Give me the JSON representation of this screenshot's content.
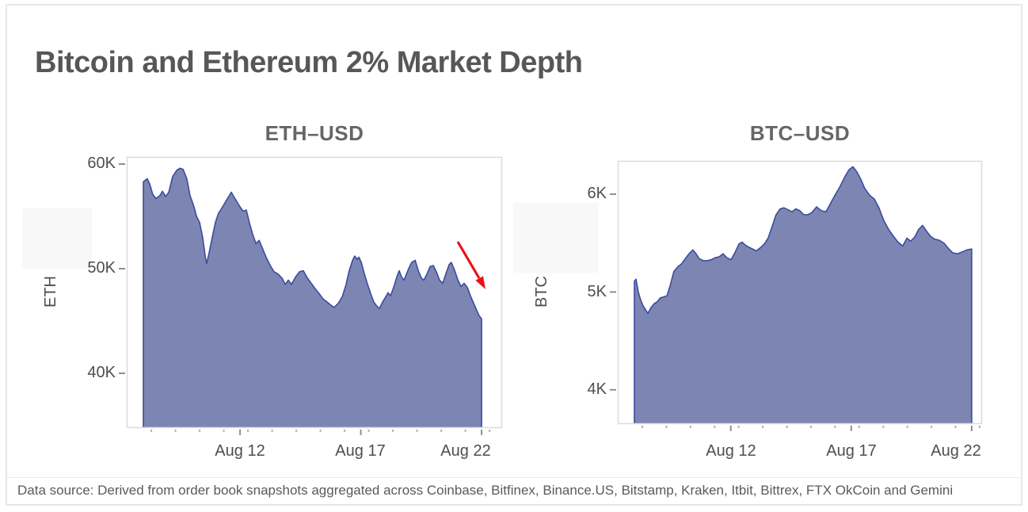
{
  "page": {
    "title": "Bitcoin and Ethereum 2% Market Depth",
    "footer": "Data source: Derived from order book snapshots aggregated across Coinbase, Bitfinex, Binance.US, Bitstamp, Kraken, Itbit, Bittrex, FTX OkCoin and Gemini"
  },
  "colors": {
    "area_fill": "#7d85b3",
    "area_stroke": "#3c4b9e",
    "plot_border": "#dcdcdc",
    "tick_major": "#8f8f8f",
    "tick_minor": "#b3b3b3",
    "arrow": "#e8131a",
    "title_text": "#575757",
    "axis_text": "#4e4e4e"
  },
  "chart_data": [
    {
      "type": "area",
      "title": "ETH–USD",
      "ylabel": "ETH",
      "x_unit": "day of August",
      "x_domain": [
        7.31,
        22.85
      ],
      "y_domain": [
        34.77,
        60.68
      ],
      "grid": false,
      "x_ticks": [
        {
          "day": 12,
          "label": "Aug 12"
        },
        {
          "day": 17,
          "label": "Aug 17"
        },
        {
          "day": 22,
          "label": "Aug 22"
        }
      ],
      "y_ticks": [
        {
          "value": 60,
          "label": "60K"
        },
        {
          "value": 50,
          "label": "50K"
        },
        {
          "value": 40,
          "label": "40K"
        }
      ],
      "annotation": {
        "type": "arrow",
        "note": "red arrow pointing to final drop",
        "from_day": 21.0,
        "from_value_k": 52.4,
        "to_day": 22.1,
        "to_value_k": 47.8
      },
      "points": [
        [
          8.0,
          58.3
        ],
        [
          8.16,
          58.6
        ],
        [
          8.26,
          58.1
        ],
        [
          8.39,
          57.1
        ],
        [
          8.52,
          56.7
        ],
        [
          8.69,
          57.0
        ],
        [
          8.79,
          57.4
        ],
        [
          8.92,
          56.9
        ],
        [
          9.05,
          57.3
        ],
        [
          9.21,
          58.8
        ],
        [
          9.38,
          59.4
        ],
        [
          9.51,
          59.6
        ],
        [
          9.64,
          59.5
        ],
        [
          9.8,
          58.6
        ],
        [
          9.93,
          57.0
        ],
        [
          10.07,
          56.1
        ],
        [
          10.2,
          55.0
        ],
        [
          10.33,
          54.4
        ],
        [
          10.46,
          52.9
        ],
        [
          10.56,
          51.2
        ],
        [
          10.62,
          50.5
        ],
        [
          10.72,
          51.5
        ],
        [
          10.85,
          53.0
        ],
        [
          10.98,
          54.4
        ],
        [
          11.11,
          55.3
        ],
        [
          11.25,
          55.8
        ],
        [
          11.38,
          56.3
        ],
        [
          11.51,
          56.8
        ],
        [
          11.64,
          57.3
        ],
        [
          11.74,
          56.9
        ],
        [
          11.87,
          56.4
        ],
        [
          12.0,
          55.9
        ],
        [
          12.13,
          55.5
        ],
        [
          12.26,
          55.6
        ],
        [
          12.39,
          54.4
        ],
        [
          12.52,
          53.3
        ],
        [
          12.66,
          52.4
        ],
        [
          12.79,
          52.7
        ],
        [
          12.92,
          52.0
        ],
        [
          13.08,
          51.1
        ],
        [
          13.25,
          50.3
        ],
        [
          13.41,
          49.7
        ],
        [
          13.57,
          49.5
        ],
        [
          13.74,
          49.1
        ],
        [
          13.87,
          48.5
        ],
        [
          14.0,
          48.9
        ],
        [
          14.13,
          48.5
        ],
        [
          14.3,
          49.2
        ],
        [
          14.46,
          49.7
        ],
        [
          14.62,
          49.8
        ],
        [
          14.79,
          49.1
        ],
        [
          14.95,
          48.6
        ],
        [
          15.11,
          48.1
        ],
        [
          15.28,
          47.6
        ],
        [
          15.44,
          47.1
        ],
        [
          15.61,
          46.8
        ],
        [
          15.77,
          46.5
        ],
        [
          15.9,
          46.3
        ],
        [
          16.07,
          46.7
        ],
        [
          16.23,
          47.3
        ],
        [
          16.39,
          48.5
        ],
        [
          16.52,
          49.8
        ],
        [
          16.66,
          50.8
        ],
        [
          16.75,
          51.2
        ],
        [
          16.85,
          50.9
        ],
        [
          16.92,
          51.1
        ],
        [
          17.02,
          50.6
        ],
        [
          17.15,
          49.5
        ],
        [
          17.28,
          48.5
        ],
        [
          17.41,
          47.6
        ],
        [
          17.54,
          46.8
        ],
        [
          17.67,
          46.4
        ],
        [
          17.77,
          46.2
        ],
        [
          17.9,
          46.8
        ],
        [
          18.03,
          47.3
        ],
        [
          18.13,
          47.7
        ],
        [
          18.23,
          47.4
        ],
        [
          18.36,
          48.2
        ],
        [
          18.49,
          49.2
        ],
        [
          18.59,
          49.8
        ],
        [
          18.69,
          49.2
        ],
        [
          18.79,
          48.9
        ],
        [
          18.89,
          49.5
        ],
        [
          19.02,
          50.2
        ],
        [
          19.11,
          50.6
        ],
        [
          19.25,
          50.8
        ],
        [
          19.38,
          49.8
        ],
        [
          19.51,
          49.1
        ],
        [
          19.61,
          48.9
        ],
        [
          19.74,
          49.5
        ],
        [
          19.87,
          50.2
        ],
        [
          20.0,
          50.3
        ],
        [
          20.13,
          49.7
        ],
        [
          20.26,
          48.9
        ],
        [
          20.39,
          48.6
        ],
        [
          20.52,
          49.5
        ],
        [
          20.66,
          50.4
        ],
        [
          20.75,
          50.6
        ],
        [
          20.89,
          49.8
        ],
        [
          21.02,
          48.9
        ],
        [
          21.15,
          48.3
        ],
        [
          21.28,
          48.6
        ],
        [
          21.41,
          48.2
        ],
        [
          21.54,
          47.4
        ],
        [
          21.67,
          46.7
        ],
        [
          21.8,
          46.0
        ],
        [
          21.9,
          45.5
        ],
        [
          22.0,
          45.2
        ]
      ]
    },
    {
      "type": "area",
      "title": "BTC–USD",
      "ylabel": "BTC",
      "x_unit": "day of August",
      "x_domain": [
        7.31,
        22.43
      ],
      "y_domain": [
        3.65,
        6.34
      ],
      "grid": false,
      "x_ticks": [
        {
          "day": 12,
          "label": "Aug 12"
        },
        {
          "day": 17,
          "label": "Aug 17"
        },
        {
          "day": 22,
          "label": "Aug 22"
        }
      ],
      "y_ticks": [
        {
          "value": 6,
          "label": "6K"
        },
        {
          "value": 5,
          "label": "5K"
        },
        {
          "value": 4,
          "label": "4K"
        }
      ],
      "points": [
        [
          8.0,
          5.11
        ],
        [
          8.07,
          5.13
        ],
        [
          8.16,
          5.0
        ],
        [
          8.26,
          4.92
        ],
        [
          8.36,
          4.86
        ],
        [
          8.46,
          4.82
        ],
        [
          8.56,
          4.78
        ],
        [
          8.69,
          4.84
        ],
        [
          8.82,
          4.88
        ],
        [
          8.95,
          4.9
        ],
        [
          9.08,
          4.94
        ],
        [
          9.22,
          4.95
        ],
        [
          9.35,
          4.96
        ],
        [
          9.48,
          5.06
        ],
        [
          9.64,
          5.21
        ],
        [
          9.81,
          5.26
        ],
        [
          9.97,
          5.29
        ],
        [
          10.14,
          5.35
        ],
        [
          10.3,
          5.4
        ],
        [
          10.43,
          5.43
        ],
        [
          10.56,
          5.39
        ],
        [
          10.69,
          5.34
        ],
        [
          10.86,
          5.32
        ],
        [
          11.02,
          5.32
        ],
        [
          11.19,
          5.33
        ],
        [
          11.35,
          5.35
        ],
        [
          11.52,
          5.36
        ],
        [
          11.68,
          5.39
        ],
        [
          11.84,
          5.35
        ],
        [
          12.01,
          5.33
        ],
        [
          12.17,
          5.4
        ],
        [
          12.34,
          5.49
        ],
        [
          12.47,
          5.51
        ],
        [
          12.6,
          5.48
        ],
        [
          12.73,
          5.46
        ],
        [
          12.9,
          5.44
        ],
        [
          13.06,
          5.42
        ],
        [
          13.22,
          5.45
        ],
        [
          13.39,
          5.49
        ],
        [
          13.55,
          5.55
        ],
        [
          13.72,
          5.67
        ],
        [
          13.88,
          5.79
        ],
        [
          14.05,
          5.85
        ],
        [
          14.21,
          5.86
        ],
        [
          14.38,
          5.84
        ],
        [
          14.54,
          5.82
        ],
        [
          14.7,
          5.85
        ],
        [
          14.87,
          5.83
        ],
        [
          15.03,
          5.79
        ],
        [
          15.2,
          5.79
        ],
        [
          15.36,
          5.81
        ],
        [
          15.56,
          5.87
        ],
        [
          15.76,
          5.83
        ],
        [
          15.95,
          5.82
        ],
        [
          16.15,
          5.91
        ],
        [
          16.35,
          6.0
        ],
        [
          16.54,
          6.08
        ],
        [
          16.74,
          6.18
        ],
        [
          16.91,
          6.25
        ],
        [
          17.07,
          6.28
        ],
        [
          17.23,
          6.23
        ],
        [
          17.4,
          6.15
        ],
        [
          17.56,
          6.06
        ],
        [
          17.76,
          5.99
        ],
        [
          17.96,
          5.95
        ],
        [
          18.15,
          5.86
        ],
        [
          18.35,
          5.73
        ],
        [
          18.55,
          5.64
        ],
        [
          18.75,
          5.57
        ],
        [
          18.94,
          5.51
        ],
        [
          19.14,
          5.47
        ],
        [
          19.31,
          5.55
        ],
        [
          19.47,
          5.52
        ],
        [
          19.63,
          5.56
        ],
        [
          19.8,
          5.64
        ],
        [
          19.96,
          5.68
        ],
        [
          20.13,
          5.62
        ],
        [
          20.29,
          5.57
        ],
        [
          20.45,
          5.54
        ],
        [
          20.65,
          5.53
        ],
        [
          20.85,
          5.5
        ],
        [
          21.05,
          5.44
        ],
        [
          21.21,
          5.4
        ],
        [
          21.41,
          5.39
        ],
        [
          21.61,
          5.41
        ],
        [
          21.8,
          5.43
        ],
        [
          22.0,
          5.44
        ]
      ]
    }
  ]
}
